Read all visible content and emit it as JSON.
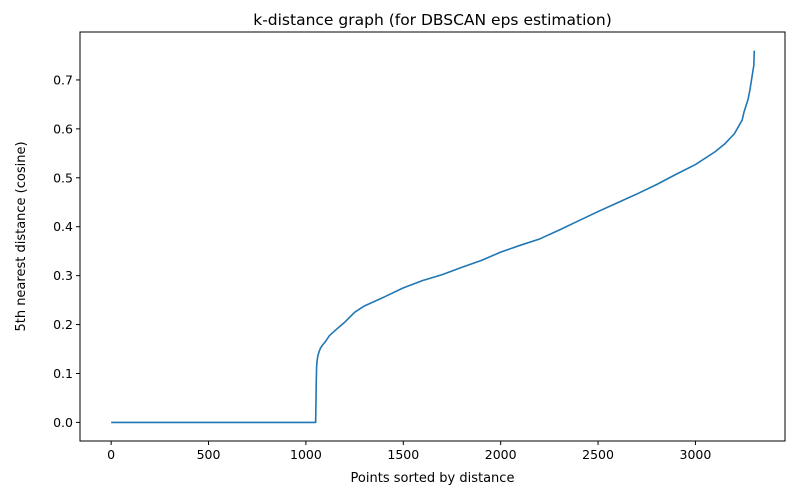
{
  "chart_data": {
    "type": "line",
    "title": "k-distance graph (for DBSCAN eps estimation)",
    "xlabel": "Points sorted by distance",
    "ylabel": "5th nearest distance (cosine)",
    "xlim": [
      -160,
      3460
    ],
    "ylim": [
      -0.038,
      0.798
    ],
    "x_ticks": [
      0,
      500,
      1000,
      1500,
      2000,
      2500,
      3000
    ],
    "x_tick_labels": [
      "0",
      "500",
      "1000",
      "1500",
      "2000",
      "2500",
      "3000"
    ],
    "y_ticks": [
      0.0,
      0.1,
      0.2,
      0.3,
      0.4,
      0.5,
      0.6,
      0.7
    ],
    "y_tick_labels": [
      "0.0",
      "0.1",
      "0.2",
      "0.3",
      "0.4",
      "0.5",
      "0.6",
      "0.7"
    ],
    "grid": false,
    "legend": "none",
    "colors": {
      "line": "#1f77b4",
      "axes": "#000000",
      "background": "#ffffff"
    },
    "series": [
      {
        "x": [
          0,
          500,
          1000,
          1050,
          1053,
          1055,
          1058,
          1062,
          1068,
          1075,
          1085,
          1100,
          1120,
          1150,
          1200,
          1250,
          1300,
          1400,
          1500,
          1600,
          1700,
          1800,
          1900,
          2000,
          2100,
          2200,
          2300,
          2400,
          2500,
          2600,
          2700,
          2800,
          2900,
          3000,
          3100,
          3150,
          3200,
          3240,
          3250,
          3270,
          3280,
          3290,
          3300,
          3302
        ],
        "y": [
          0.0,
          0.0,
          0.0,
          0.0,
          0.08,
          0.115,
          0.128,
          0.137,
          0.145,
          0.152,
          0.158,
          0.165,
          0.177,
          0.188,
          0.205,
          0.225,
          0.238,
          0.256,
          0.275,
          0.29,
          0.302,
          0.317,
          0.331,
          0.348,
          0.362,
          0.375,
          0.393,
          0.412,
          0.431,
          0.449,
          0.467,
          0.486,
          0.507,
          0.527,
          0.553,
          0.569,
          0.59,
          0.618,
          0.635,
          0.66,
          0.68,
          0.705,
          0.73,
          0.76
        ]
      }
    ]
  }
}
